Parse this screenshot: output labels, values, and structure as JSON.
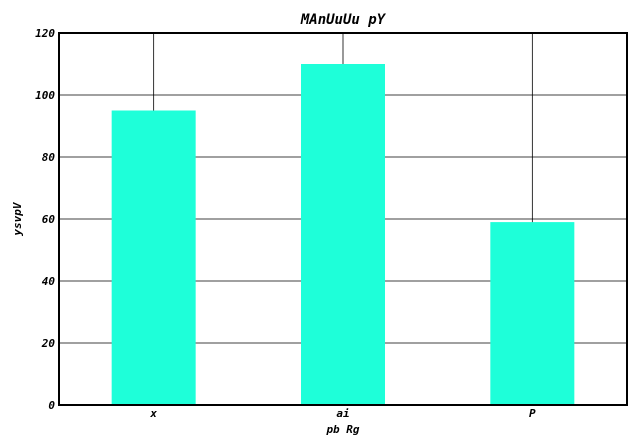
{
  "chart_data": {
    "type": "bar",
    "title": "MAnUuUu pY",
    "xlabel": "pb Rg",
    "ylabel": "ysvpV",
    "categories": [
      "x",
      "ai",
      "P"
    ],
    "values": [
      95,
      110,
      59
    ],
    "ylim": [
      0,
      120
    ],
    "yticks": [
      0,
      20,
      40,
      60,
      80,
      100,
      120
    ],
    "grid": true,
    "colors": {
      "bar": "#1effd9"
    }
  }
}
